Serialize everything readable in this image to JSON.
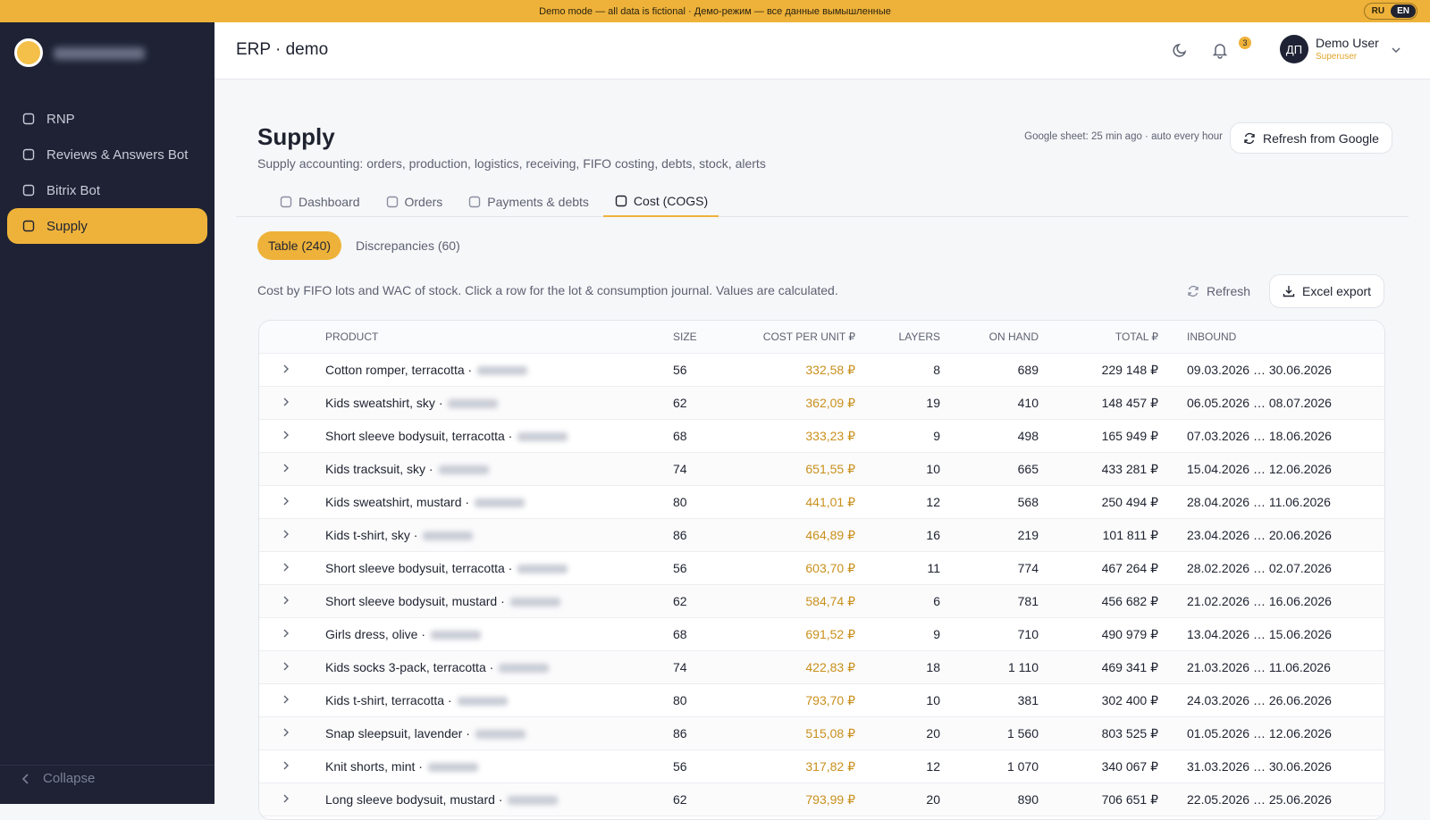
{
  "banner": {
    "text": "Demo mode — all data is fictional · Демо-режим — все данные вымышленные",
    "languages": [
      "RU",
      "EN"
    ]
  },
  "sidebar": {
    "items": [
      "RNP",
      "Reviews & Answers Bot",
      "Bitrix Bot",
      "Supply"
    ],
    "active": 3,
    "collapse": "Collapse"
  },
  "header": {
    "title": "ERP · demo",
    "notifications": "3",
    "user_initials": "ДП",
    "user_name": "Demo User",
    "user_role": "Superuser"
  },
  "page": {
    "title": "Supply",
    "subtitle": "Supply accounting: orders, production, logistics, receiving, FIFO costing, debts, stock, alerts",
    "sync_status": "Google sheet: 25 min ago · auto every hour",
    "sync_button": "Refresh from Google",
    "tabs": [
      "Dashboard",
      "Orders",
      "Payments & debts",
      "Cost (COGS)"
    ],
    "active_tab": 3,
    "subtabs": [
      "Table (240)",
      "Discrepancies (60)"
    ],
    "active_subtab": 0,
    "note": "Cost by FIFO lots and WAC of stock. Click a row for the lot & consumption journal. Values are calculated.",
    "refresh_button": "Refresh",
    "export_button": "Excel export"
  },
  "table": {
    "columns": [
      "PRODUCT",
      "SIZE",
      "COST PER UNIT ₽",
      "LAYERS",
      "ON HAND",
      "TOTAL ₽",
      "INBOUND"
    ],
    "rows": [
      [
        "Cotton romper, terracotta ·",
        "56",
        "332,58 ₽",
        "8",
        "689",
        "229 148 ₽",
        "09.03.2026 … 30.06.2026"
      ],
      [
        "Kids sweatshirt, sky ·",
        "62",
        "362,09 ₽",
        "19",
        "410",
        "148 457 ₽",
        "06.05.2026 … 08.07.2026"
      ],
      [
        "Short sleeve bodysuit, terracotta ·",
        "68",
        "333,23 ₽",
        "9",
        "498",
        "165 949 ₽",
        "07.03.2026 … 18.06.2026"
      ],
      [
        "Kids tracksuit, sky ·",
        "74",
        "651,55 ₽",
        "10",
        "665",
        "433 281 ₽",
        "15.04.2026 … 12.06.2026"
      ],
      [
        "Kids sweatshirt, mustard ·",
        "80",
        "441,01 ₽",
        "12",
        "568",
        "250 494 ₽",
        "28.04.2026 … 11.06.2026"
      ],
      [
        "Kids t-shirt, sky ·",
        "86",
        "464,89 ₽",
        "16",
        "219",
        "101 811 ₽",
        "23.04.2026 … 20.06.2026"
      ],
      [
        "Short sleeve bodysuit, terracotta ·",
        "56",
        "603,70 ₽",
        "11",
        "774",
        "467 264 ₽",
        "28.02.2026 … 02.07.2026"
      ],
      [
        "Short sleeve bodysuit, mustard ·",
        "62",
        "584,74 ₽",
        "6",
        "781",
        "456 682 ₽",
        "21.02.2026 … 16.06.2026"
      ],
      [
        "Girls dress, olive ·",
        "68",
        "691,52 ₽",
        "9",
        "710",
        "490 979 ₽",
        "13.04.2026 … 15.06.2026"
      ],
      [
        "Kids socks 3-pack, terracotta ·",
        "74",
        "422,83 ₽",
        "18",
        "1 110",
        "469 341 ₽",
        "21.03.2026 … 11.06.2026"
      ],
      [
        "Kids t-shirt, terracotta ·",
        "80",
        "793,70 ₽",
        "10",
        "381",
        "302 400 ₽",
        "24.03.2026 … 26.06.2026"
      ],
      [
        "Snap sleepsuit, lavender ·",
        "86",
        "515,08 ₽",
        "20",
        "1 560",
        "803 525 ₽",
        "01.05.2026 … 12.06.2026"
      ],
      [
        "Knit shorts, mint ·",
        "56",
        "317,82 ₽",
        "12",
        "1 070",
        "340 067 ₽",
        "31.03.2026 … 30.06.2026"
      ],
      [
        "Long sleeve bodysuit, mustard ·",
        "62",
        "793,99 ₽",
        "20",
        "890",
        "706 651 ₽",
        "22.05.2026 … 25.06.2026"
      ]
    ]
  }
}
